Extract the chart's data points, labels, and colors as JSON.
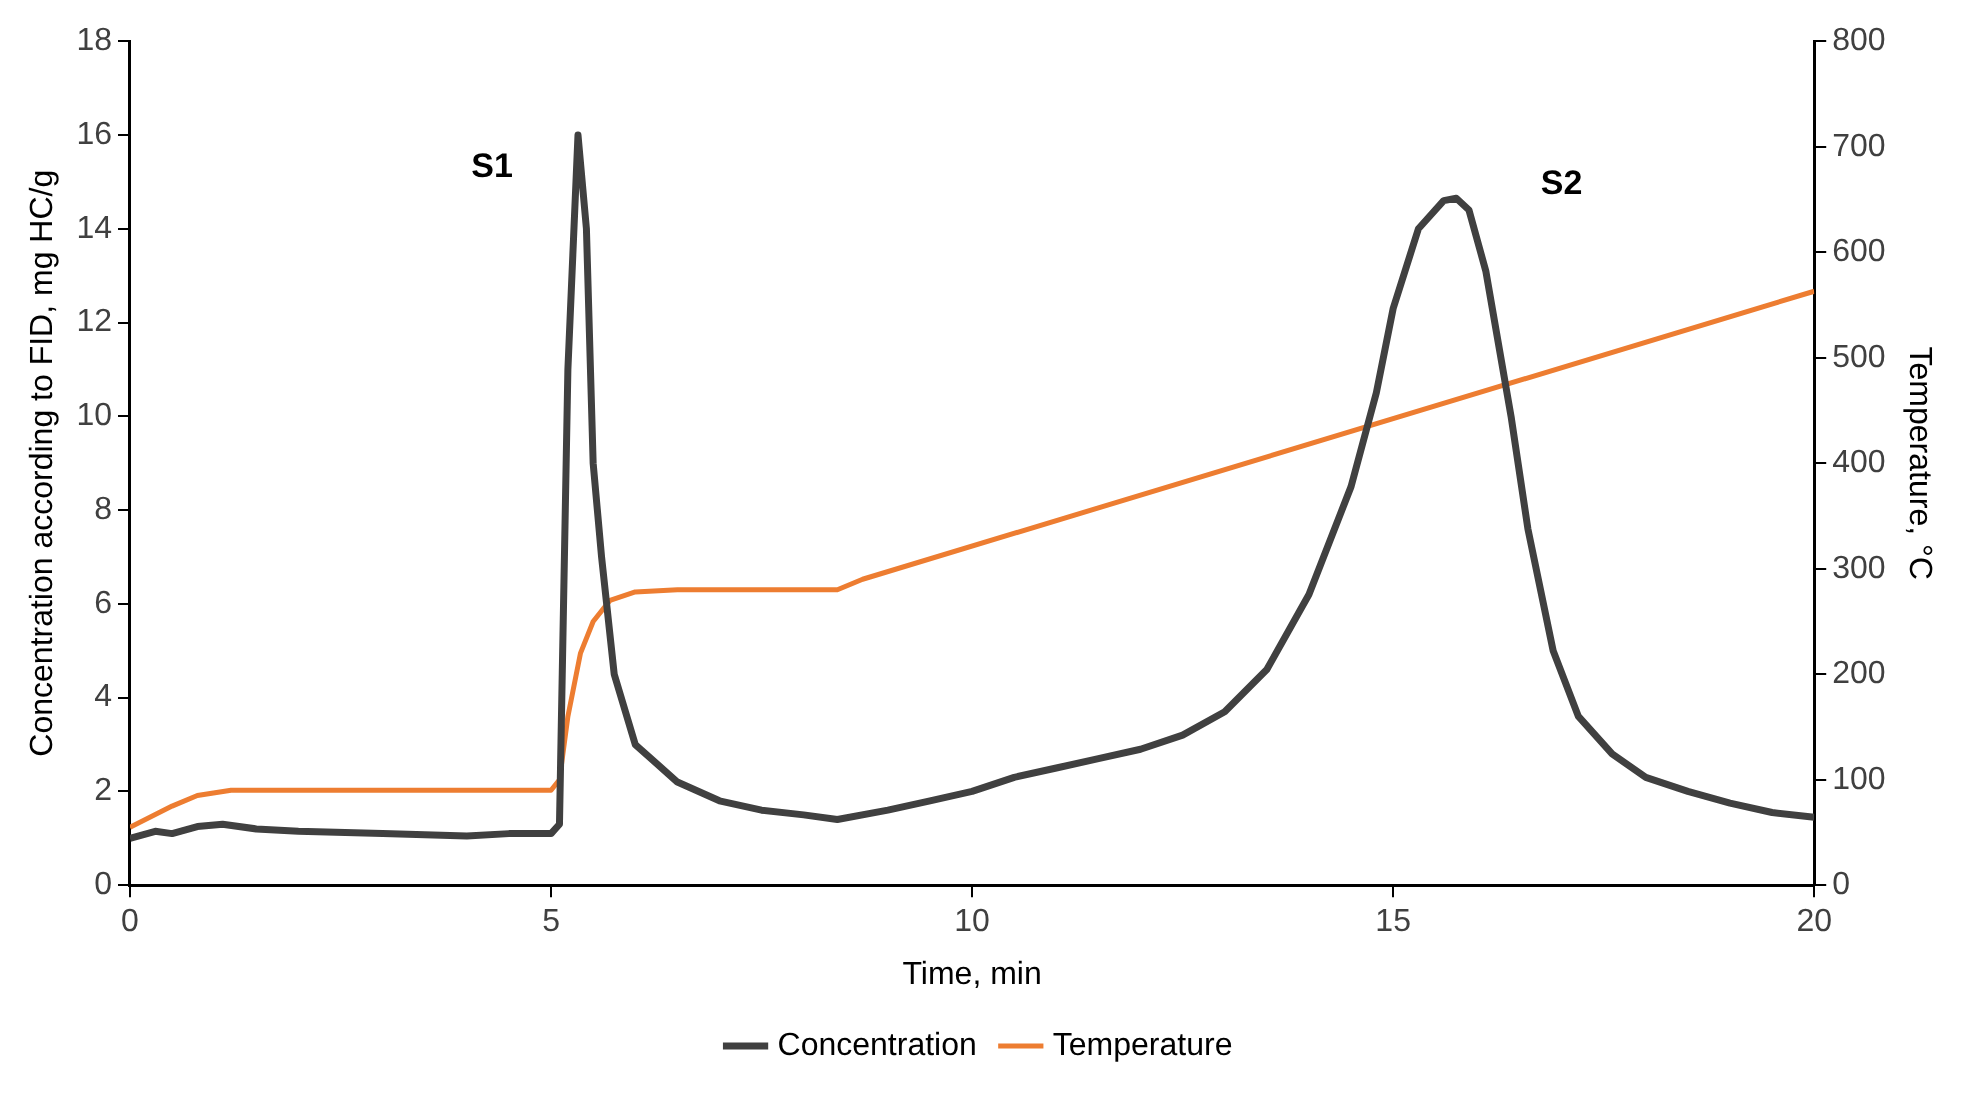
{
  "chart_data": {
    "type": "line",
    "xlabel": "Time, min",
    "ylabel": "Concentration according to FID, mg HC/g",
    "y2label": "Temperature, °C",
    "xlim": [
      0,
      20
    ],
    "xticks": [
      0,
      5,
      10,
      15,
      20
    ],
    "ylim": [
      0,
      18
    ],
    "yticks": [
      0,
      2,
      4,
      6,
      8,
      10,
      12,
      14,
      16,
      18
    ],
    "y2lim": [
      0,
      800
    ],
    "y2ticks": [
      0,
      100,
      200,
      300,
      400,
      500,
      600,
      700,
      800
    ],
    "grid": false,
    "legend": "bottom",
    "marker": "none",
    "line_style": "solid",
    "annotations": [
      "S1",
      "S2"
    ],
    "series": [
      {
        "name": "Concentration",
        "color": "#404040",
        "x": [
          0,
          0.3,
          0.5,
          0.8,
          1.1,
          1.5,
          2,
          3,
          4,
          4.5,
          5,
          5.1,
          5.2,
          5.32,
          5.42,
          5.5,
          5.6,
          5.75,
          6,
          6.5,
          7,
          7.5,
          8,
          8.4,
          9,
          9.5,
          10,
          10.5,
          11,
          11.5,
          12,
          12.5,
          13,
          13.5,
          14,
          14.5,
          14.8,
          15,
          15.3,
          15.6,
          15.75,
          15.9,
          16.1,
          16.4,
          16.6,
          16.9,
          17.2,
          17.6,
          18,
          18.5,
          19,
          19.5,
          20
        ],
        "values": [
          1,
          1.15,
          1.1,
          1.25,
          1.3,
          1.2,
          1.15,
          1.1,
          1.05,
          1.1,
          1.1,
          1.3,
          11,
          16,
          14,
          9,
          7,
          4.5,
          3,
          2.2,
          1.8,
          1.6,
          1.5,
          1.4,
          1.6,
          1.8,
          2,
          2.3,
          2.5,
          2.7,
          2.9,
          3.2,
          3.7,
          4.6,
          6.2,
          8.5,
          10.5,
          12.3,
          14,
          14.6,
          14.65,
          14.4,
          13.1,
          10,
          7.6,
          5,
          3.6,
          2.8,
          2.3,
          2,
          1.75,
          1.55,
          1.45
        ]
      },
      {
        "name": "Temperature",
        "color": "#ed7d31",
        "axis": "y2",
        "x": [
          0,
          0.5,
          0.8,
          1.2,
          5,
          5.1,
          5.2,
          5.35,
          5.5,
          5.7,
          6,
          6.5,
          8.4,
          8.7,
          20
        ],
        "values": [
          55,
          75,
          85,
          90,
          90,
          100,
          160,
          220,
          250,
          270,
          278,
          280,
          280,
          290,
          563
        ]
      }
    ]
  }
}
